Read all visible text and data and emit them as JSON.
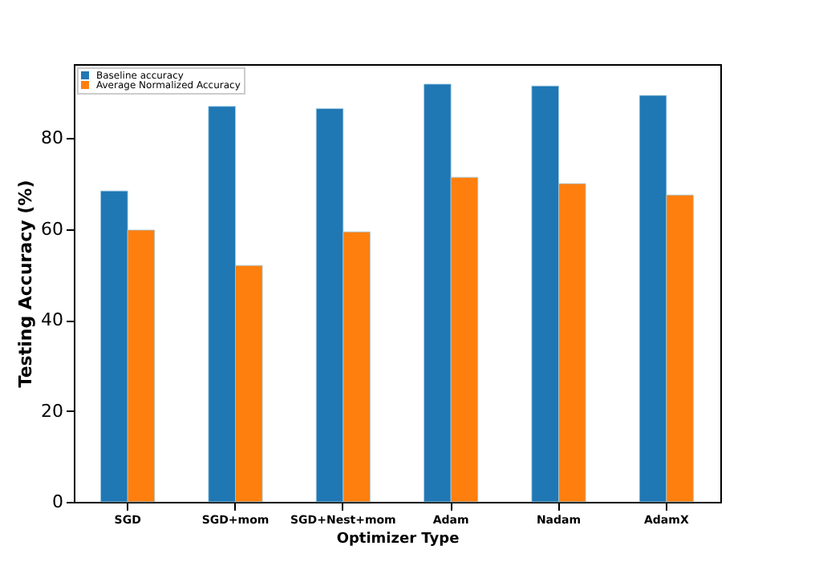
{
  "chart_data": {
    "type": "bar",
    "xlabel": "Optimizer Type",
    "ylabel": "Testing Accuracy (%)",
    "categories": [
      "SGD",
      "SGD+mom",
      "SGD+Nest+mom",
      "Adam",
      "Nadam",
      "AdamX"
    ],
    "series": [
      {
        "name": "Baseline accuracy",
        "color": "#1f77b4",
        "values": [
          68.4,
          87.0,
          86.5,
          91.9,
          91.5,
          89.4
        ]
      },
      {
        "name": "Average Normalized Accuracy",
        "color": "#ff7f0e",
        "values": [
          59.8,
          52.0,
          59.4,
          71.4,
          70.0,
          67.5
        ]
      }
    ],
    "ylim": [
      0,
      96.3
    ],
    "yticks": [
      0,
      20,
      40,
      60,
      80
    ],
    "grid": false,
    "legend": "top left"
  }
}
